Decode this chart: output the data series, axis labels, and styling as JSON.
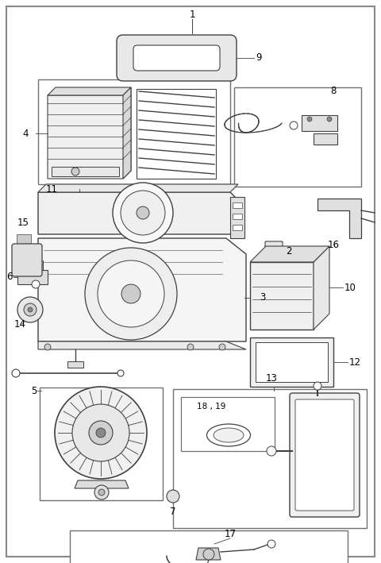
{
  "bg_color": "#ffffff",
  "line_color": "#404040",
  "border_color": "#606060",
  "figsize": [
    4.8,
    7.09
  ],
  "dpi": 100,
  "lw_main": 0.8,
  "lw_thin": 0.5,
  "label_fs": 7.5
}
